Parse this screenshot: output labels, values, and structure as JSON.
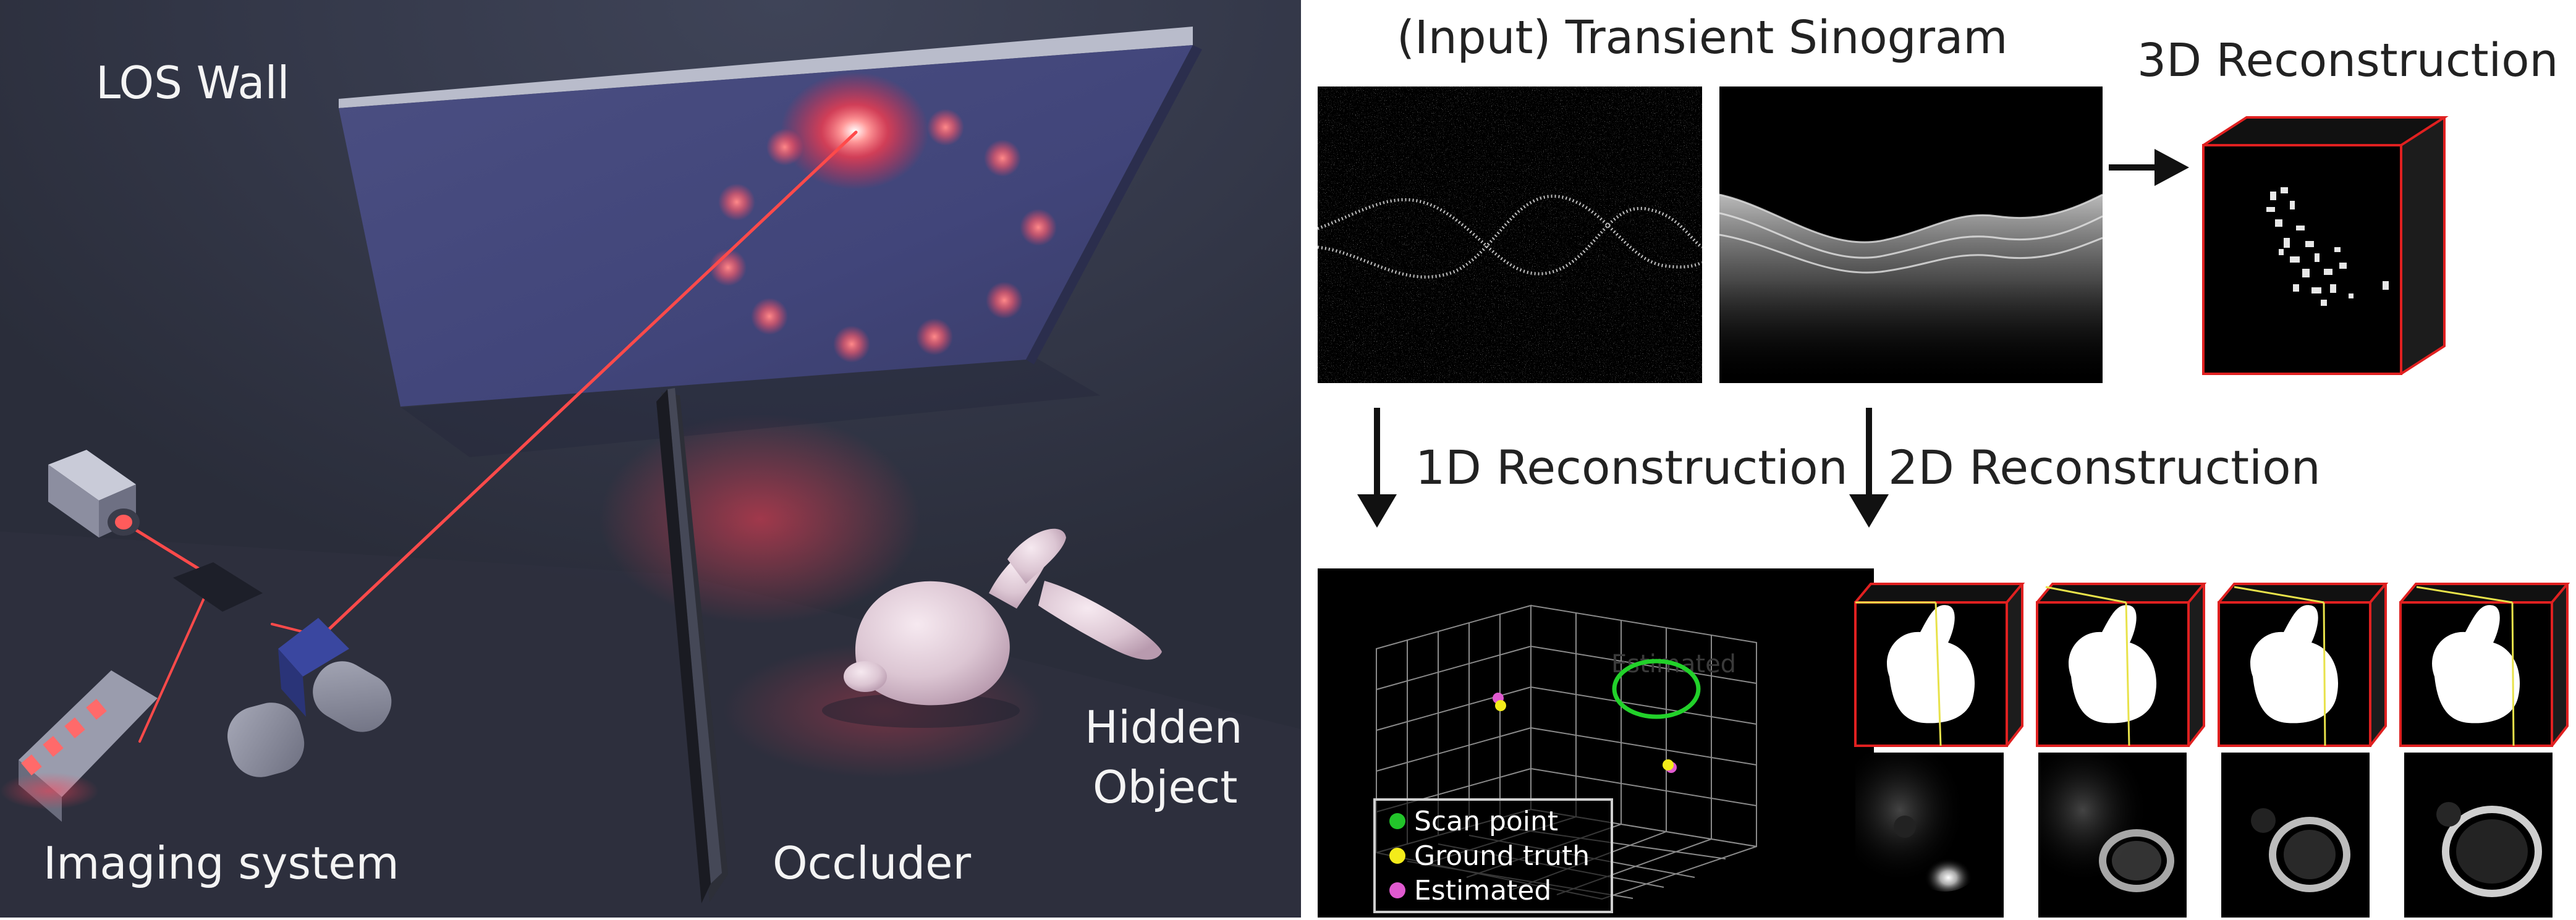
{
  "scene": {
    "wall_label": "LOS Wall",
    "imaging_label": "Imaging system",
    "occluder_label": "Occluder",
    "hidden_label_line1": "Hidden",
    "hidden_label_line2": "Object",
    "laser_color": "#ff3a3a"
  },
  "panel": {
    "input_title": "(Input) Transient Sinogram",
    "recon3d_title": "3D Reconstruction",
    "recon1d_label": "1D Reconstruction",
    "recon2d_label": "2D Reconstruction",
    "legend": {
      "scan_point": "Scan point",
      "ground_truth": "Ground truth",
      "estimated": "Estimated"
    },
    "plot_overlay_text": "Estimated"
  }
}
